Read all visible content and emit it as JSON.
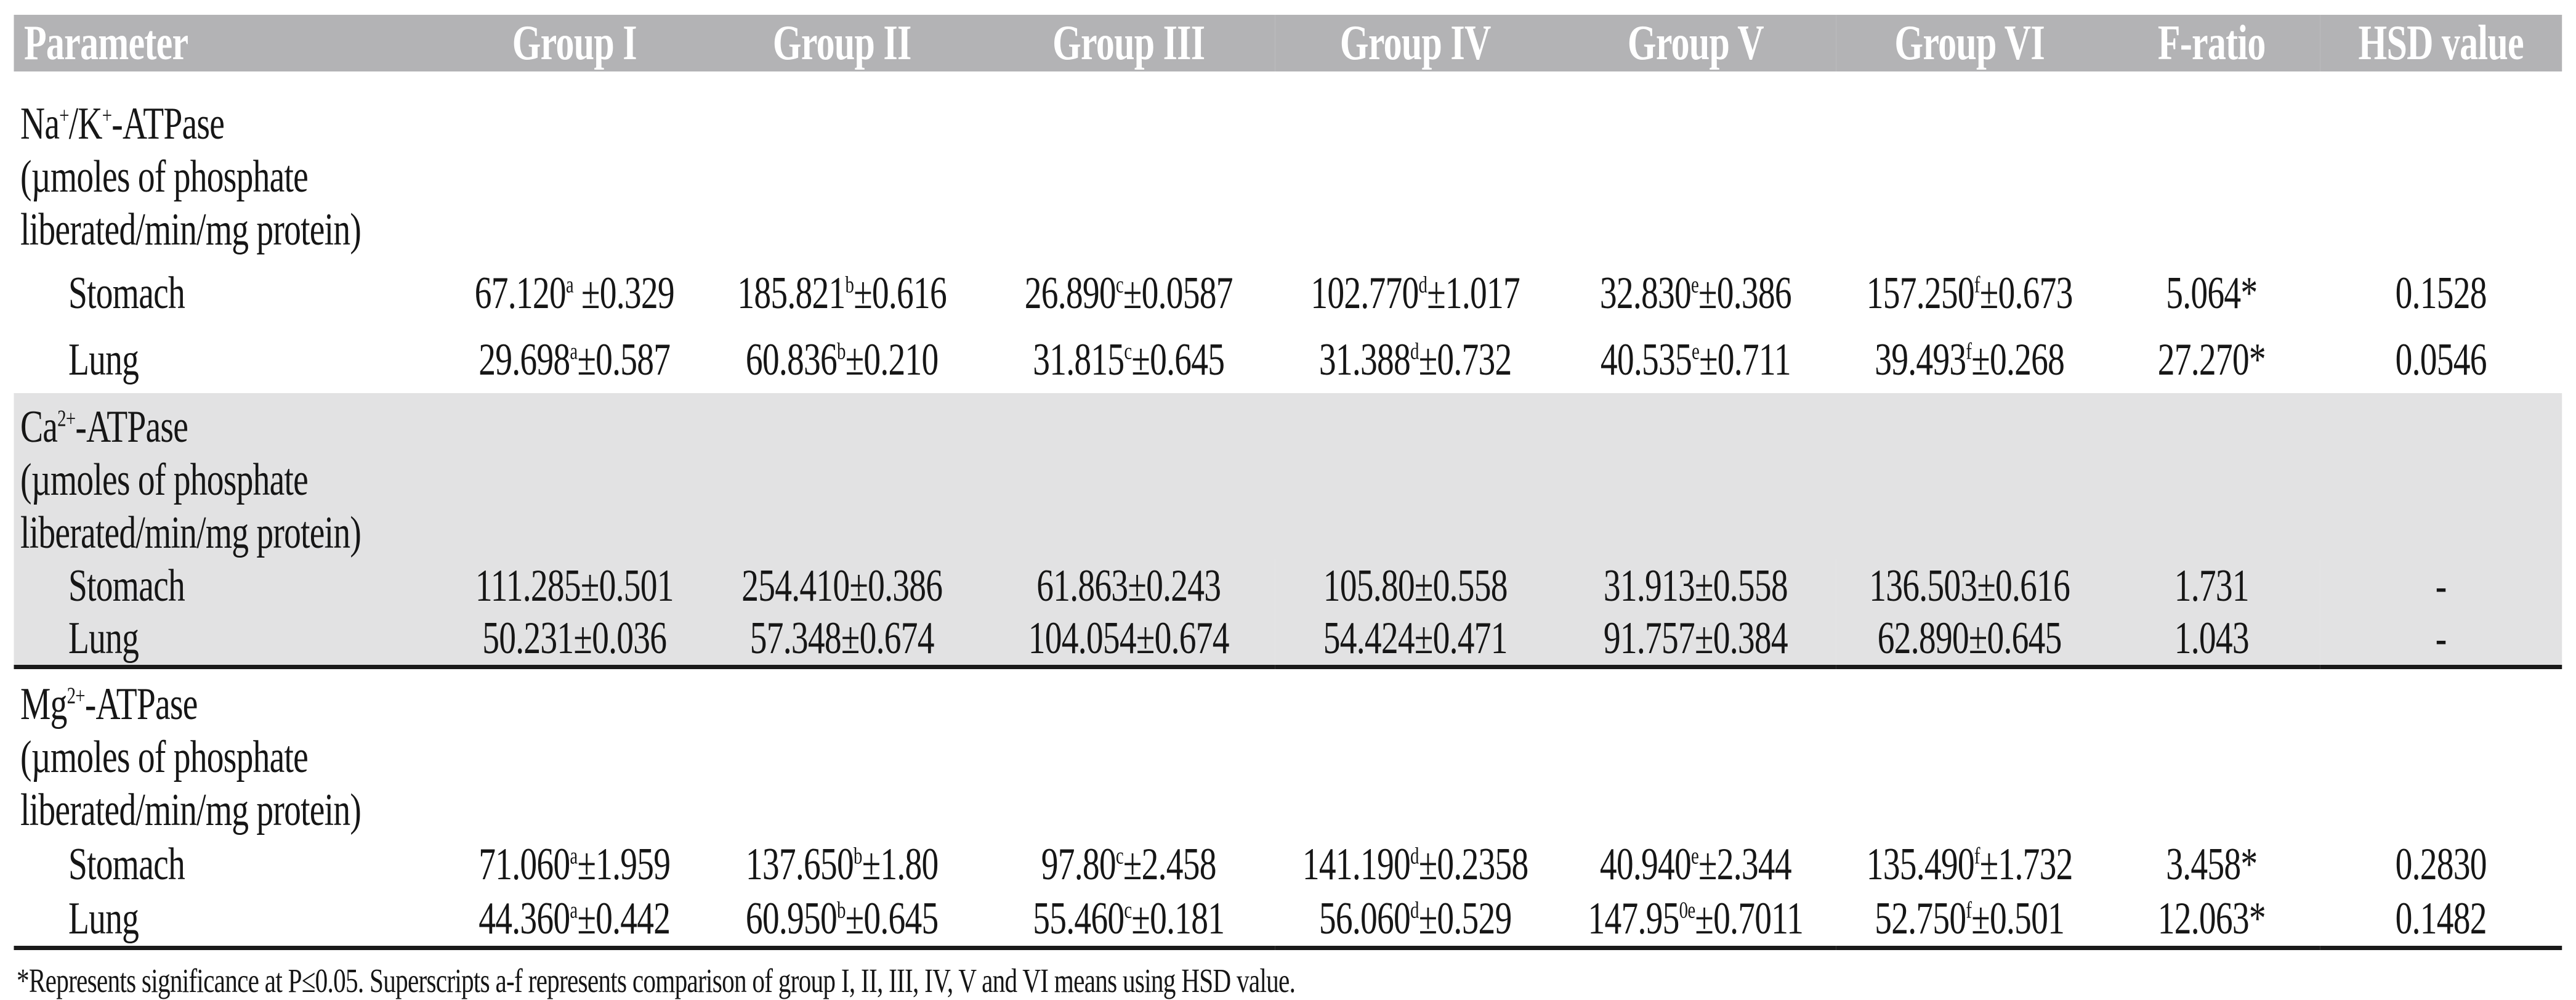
{
  "table": {
    "columns": [
      "Parameter",
      "Group I",
      "Group II",
      "Group III",
      "Group IV",
      "Group V",
      "Group VI",
      "F-ratio",
      "HSD value"
    ],
    "sections": [
      {
        "shaded": false,
        "title_lines": [
          "Na^+^/K^+^-ATPase",
          "(µmoles of phosphate",
          "liberated/min/mg protein)"
        ],
        "rows": [
          {
            "label": "Stomach",
            "values": [
              "67.120^a^ ±0.329",
              "185.821^b^±0.616",
              "26.890^c^±0.0587",
              "102.770^d^±1.017",
              "32.830^e^±0.386",
              "157.250^f^±0.673",
              "5.064*",
              "0.1528"
            ]
          },
          {
            "label": "Lung",
            "values": [
              "29.698^a^±0.587",
              "60.836^b^±0.210",
              "31.815^c^±0.645",
              "31.388^d^±0.732",
              "40.535^e^±0.711",
              "39.493^f^±0.268",
              "27.270*",
              "0.0546"
            ]
          }
        ]
      },
      {
        "shaded": true,
        "title_lines": [
          "Ca^2+^-ATPase",
          "(µmoles of phosphate",
          "liberated/min/mg protein)"
        ],
        "rows": [
          {
            "label": "Stomach",
            "values": [
              "111.285±0.501",
              "254.410±0.386",
              "61.863±0.243",
              "105.80±0.558",
              "31.913±0.558",
              "136.503±0.616",
              "1.731",
              "-"
            ]
          },
          {
            "label": "Lung",
            "values": [
              "50.231±0.036",
              "57.348±0.674",
              "104.054±0.674",
              "54.424±0.471",
              "91.757±0.384",
              "62.890±0.645",
              "1.043",
              "-"
            ]
          }
        ]
      },
      {
        "shaded": false,
        "title_lines": [
          "Mg^2+^-ATPase",
          "(µmoles of phosphate",
          "liberated/min/mg protein)"
        ],
        "rows": [
          {
            "label": "Stomach",
            "values": [
              "71.060^a^±1.959",
              "137.650^b^±1.80",
              "97.80^c^±2.458",
              "141.190^d^±0.2358",
              "40.940^e^±2.344",
              "135.490^f^±1.732",
              "3.458*",
              "0.2830"
            ]
          },
          {
            "label": "Lung",
            "values": [
              "44.360^a^±0.442",
              "60.950^b^±0.645",
              "55.460^c^±0.181",
              "56.060^d^±0.529",
              "147.95^0e^±0.7011",
              "52.750^f^±0.501",
              "12.063*",
              "0.1482"
            ]
          }
        ]
      }
    ],
    "footnote": "*Represents significance at P≤0.05. Superscripts a-f represents comparison of group I, II, III, IV, V and VI means using HSD value."
  },
  "colors": {
    "header_bg": "#b3b3b5",
    "shaded_bg": "#e2e2e3",
    "rule": "#1a1a1a"
  }
}
